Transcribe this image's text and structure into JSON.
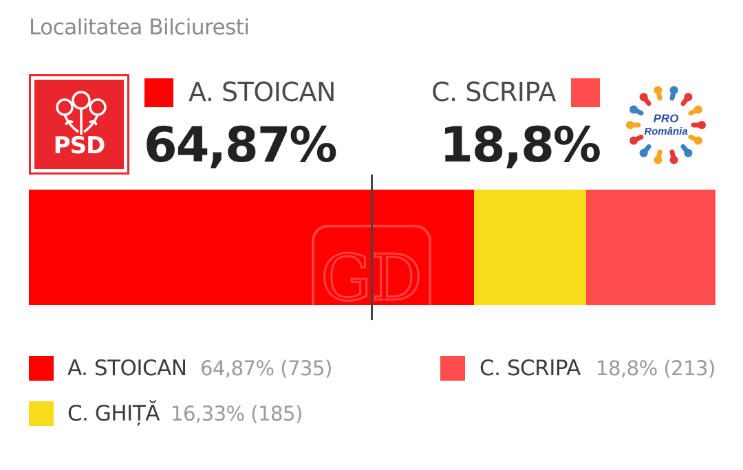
{
  "title": "Localitatea Bilciuresti",
  "colors": {
    "stoican": "#ff0000",
    "ghita": "#f8dc1c",
    "scripa": "#ff4d4d",
    "psd": "#e8262b"
  },
  "logos": {
    "left_text": "PSD",
    "right_line1": "PRO",
    "right_line2": "România"
  },
  "header": {
    "left": {
      "name": "A. STOICAN",
      "percent": "64,87%"
    },
    "right": {
      "name": "C. SCRIPA",
      "percent": "18,8%"
    }
  },
  "legend": [
    {
      "name": "A. STOICAN",
      "value": "64,87% (735)"
    },
    {
      "name": "C. SCRIPA",
      "value": "18,8% (213)"
    },
    {
      "name": "C. GHIȚĂ",
      "value": "16,33% (185)"
    }
  ],
  "chart_data": {
    "type": "bar",
    "orientation": "horizontal-stacked",
    "categories": [
      "A. STOICAN",
      "C. GHIȚĂ",
      "C. SCRIPA"
    ],
    "values": [
      64.87,
      16.33,
      18.8
    ],
    "votes": [
      735,
      185,
      213
    ],
    "xlim": [
      0,
      100
    ],
    "majority_marker": 50
  }
}
